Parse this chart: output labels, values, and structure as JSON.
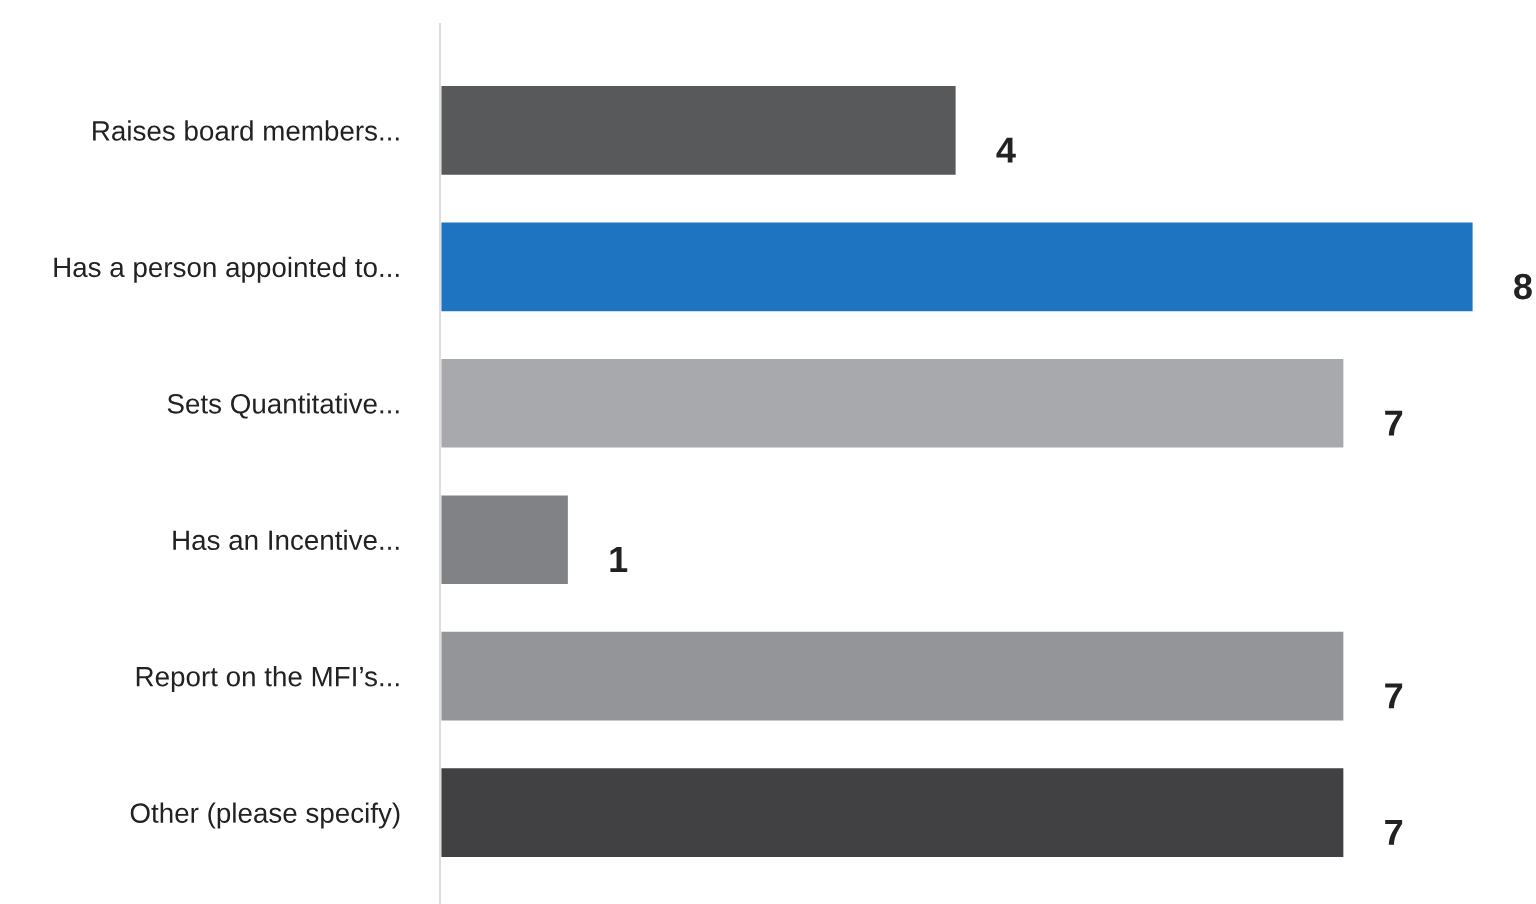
{
  "chart_data": {
    "type": "bar",
    "orientation": "horizontal",
    "categories": [
      "Raises board members...",
      "Has a person appointed to...",
      "Sets Quantitative...",
      "Has an Incentive...",
      "Report on the MFI’s...",
      "Other (please specify)"
    ],
    "values": [
      4,
      8,
      7,
      1,
      7,
      7
    ],
    "colors": [
      "#58595b",
      "#1f74c1",
      "#a7a9ac",
      "#808285",
      "#939598",
      "#414042"
    ],
    "data_labels": true,
    "grid": false,
    "legend": false
  }
}
